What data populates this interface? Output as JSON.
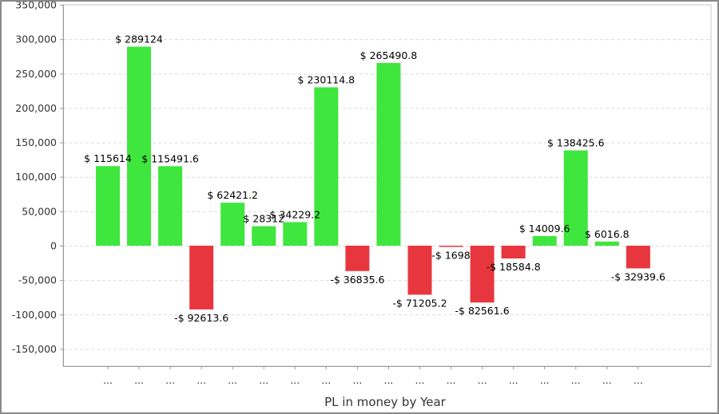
{
  "chart_data": {
    "type": "bar",
    "title": "",
    "xlabel": "PL in money by Year",
    "ylabel": "",
    "ylim": [
      -175000,
      350000
    ],
    "yticks": [
      350000,
      300000,
      250000,
      200000,
      150000,
      100000,
      50000,
      0,
      -50000,
      -100000,
      -150000
    ],
    "ytick_labels": [
      "350,000",
      "300,000",
      "250,000",
      "200,000",
      "150,000",
      "100,000",
      "50,000",
      "0",
      "-50,000",
      "-100,000",
      "-150,000"
    ],
    "grid": true,
    "legend": "none",
    "categories": [
      "...",
      "...",
      "...",
      "...",
      "...",
      "...",
      "...",
      "...",
      "...",
      "...",
      "...",
      "...",
      "...",
      "...",
      "...",
      "...",
      "...",
      "..."
    ],
    "values": [
      115614,
      289124,
      115491.6,
      -92613.6,
      62421.2,
      28312,
      34229.2,
      230114.8,
      -36835.6,
      265490.8,
      -71205.2,
      -1698,
      -82561.6,
      -18584.8,
      14009.6,
      138425.6,
      6016.8,
      -32939.6
    ],
    "data_labels": [
      "$ 115614",
      "$ 289124",
      "$ 115491.6",
      "-$ 92613.6",
      "$ 62421.2",
      "$ 28312",
      "$ 34229.2",
      "$ 230114.8",
      "-$ 36835.6",
      "$ 265490.8",
      "-$ 71205.2",
      "-$ 1698",
      "-$ 82561.6",
      "-$ 18584.8",
      "$ 14009.6",
      "$ 138425.6",
      "$ 6016.8",
      "-$ 32939.6"
    ],
    "positive_color": "#3ee63e",
    "negative_color": "#e8363f",
    "grid_color": "#dcdcdc",
    "axis_color": "#9a9a9a"
  }
}
